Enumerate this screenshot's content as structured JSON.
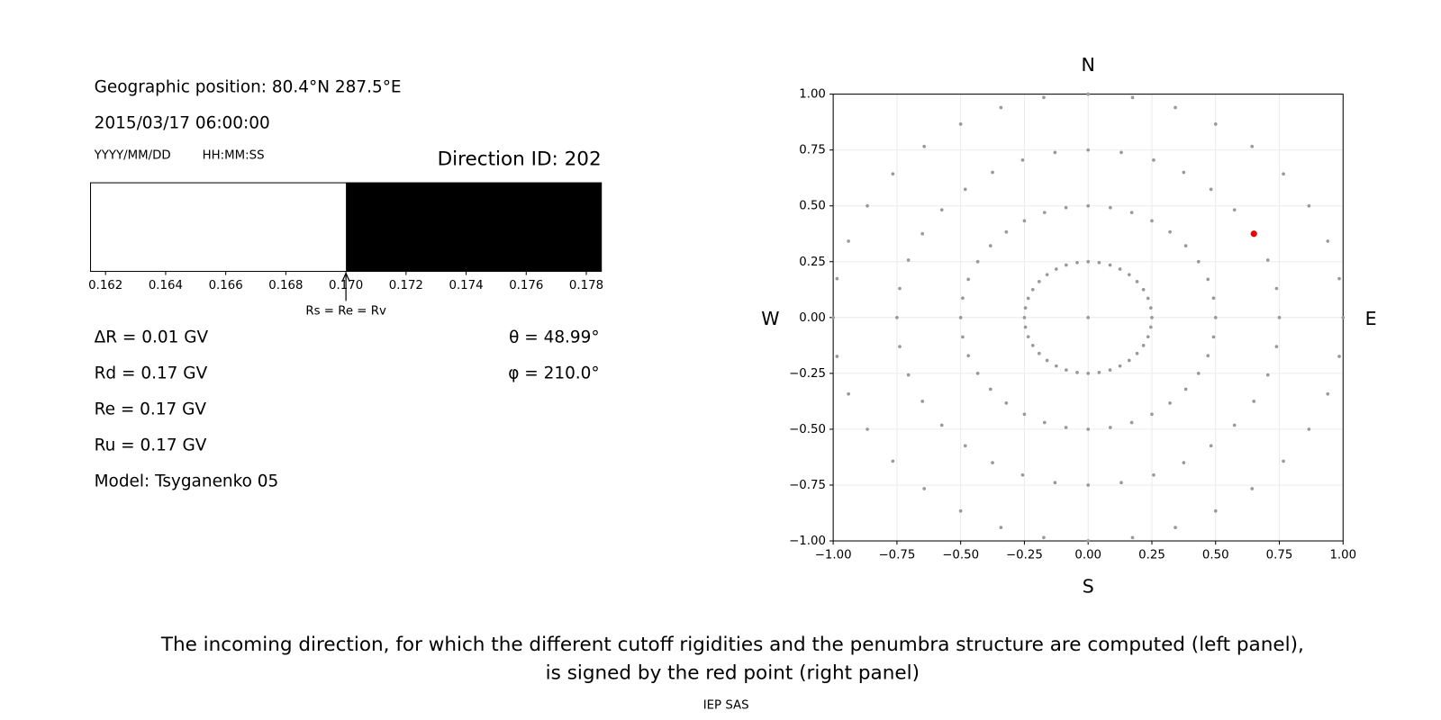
{
  "panel": {
    "position": "Geographic position: 80.4°N 287.5°E",
    "datetime": "2015/03/17 06:00:00",
    "date_format": "YYYY/MM/DD",
    "time_format": "HH:MM:SS",
    "direction_id": "Direction ID: 202",
    "rigidities": [
      "ΔR = 0.01 GV",
      "Rd = 0.17 GV",
      "Re = 0.17 GV",
      "Ru = 0.17 GV"
    ],
    "angles": [
      "θ = 48.99°",
      "φ = 210.0°"
    ],
    "model": "Model: Tsyganenko 05"
  },
  "chart_data": [
    {
      "type": "penumbra",
      "bins": [
        0.1615,
        0.17,
        0.1785
      ],
      "colors": [
        "#ffffff",
        "#000000"
      ],
      "xlim": [
        0.1615,
        0.1785
      ],
      "xticks": [
        0.162,
        0.164,
        0.166,
        0.168,
        {
          "value": 0.17,
          "label": "0.170"
        },
        0.172,
        0.174,
        0.176,
        0.178
      ],
      "annotation": {
        "text": "Rs = Re = Rv",
        "x": 0.17
      }
    },
    {
      "type": "scatter",
      "xlim": [
        -1,
        1
      ],
      "ylim": [
        -1,
        1
      ],
      "grid": true,
      "directions": {
        "top": "N",
        "bottom": "S",
        "left": "W",
        "right": "E"
      },
      "xticks": [
        {
          "value": -1,
          "label": "−1.00"
        },
        {
          "value": -0.75,
          "label": "−0.75"
        },
        {
          "value": -0.5,
          "label": "−0.50"
        },
        {
          "value": -0.25,
          "label": "−0.25"
        },
        {
          "value": 0,
          "label": "0.00"
        },
        0.25,
        {
          "value": 0.5,
          "label": "0.50"
        },
        0.75,
        {
          "value": 1,
          "label": "1.00"
        }
      ],
      "yticks": [
        {
          "value": -1,
          "label": "−1.00"
        },
        {
          "value": -0.75,
          "label": "−0.75"
        },
        {
          "value": -0.5,
          "label": "−0.50"
        },
        {
          "value": -0.25,
          "label": "−0.25"
        },
        {
          "value": 0,
          "label": "0.00"
        },
        0.25,
        {
          "value": 0.5,
          "label": "0.50"
        },
        0.75,
        {
          "value": 1,
          "label": "1.00"
        }
      ],
      "series": [
        {
          "color": "#999999",
          "x": [
            0,
            0,
            0.043,
            0.086,
            0.125,
            0.161,
            0.192,
            0.217,
            0.235,
            0.246,
            0.25,
            0.246,
            0.235,
            0.217,
            0.192,
            0.161,
            0.125,
            0.086,
            0.043,
            0,
            -0.043,
            -0.086,
            -0.125,
            -0.161,
            -0.192,
            -0.217,
            -0.235,
            -0.246,
            -0.25,
            -0.246,
            -0.235,
            -0.217,
            -0.192,
            -0.161,
            -0.125,
            -0.086,
            -0.043,
            0,
            0.087,
            0.171,
            0.25,
            0.321,
            0.383,
            0.433,
            0.47,
            0.492,
            0.5,
            0.492,
            0.47,
            0.433,
            0.383,
            0.321,
            0.25,
            0.171,
            0.087,
            0,
            -0.087,
            -0.171,
            -0.25,
            -0.321,
            -0.383,
            -0.433,
            -0.47,
            -0.492,
            -0.5,
            -0.492,
            -0.47,
            -0.433,
            -0.383,
            -0.321,
            -0.25,
            -0.171,
            -0.087,
            0,
            0.13,
            0.257,
            0.375,
            0.482,
            0.574,
            0.65,
            0.705,
            0.739,
            0.75,
            0.739,
            0.705,
            0.65,
            0.574,
            0.482,
            0.375,
            0.257,
            0.13,
            0,
            -0.13,
            -0.257,
            -0.375,
            -0.482,
            -0.574,
            -0.65,
            -0.705,
            -0.739,
            -0.75,
            -0.739,
            -0.705,
            -0.65,
            -0.574,
            -0.482,
            -0.375,
            -0.257,
            -0.13,
            0,
            0.174,
            0.342,
            0.5,
            0.643,
            0.766,
            0.866,
            0.94,
            0.985,
            1,
            0.985,
            0.94,
            0.866,
            0.766,
            0.643,
            0.5,
            0.342,
            0.174,
            0,
            -0.174,
            -0.342,
            -0.5,
            -0.643,
            -0.766,
            -0.866,
            -0.94,
            -0.985,
            -1,
            -0.985,
            -0.94,
            -0.866,
            -0.766,
            -0.643,
            -0.5,
            -0.342,
            -0.174
          ],
          "y": [
            0,
            0.25,
            0.246,
            0.235,
            0.217,
            0.192,
            0.161,
            0.125,
            0.086,
            0.043,
            0,
            -0.043,
            -0.086,
            -0.125,
            -0.161,
            -0.192,
            -0.217,
            -0.235,
            -0.246,
            -0.25,
            -0.246,
            -0.235,
            -0.217,
            -0.192,
            -0.161,
            -0.125,
            -0.086,
            -0.043,
            0,
            0.043,
            0.086,
            0.125,
            0.161,
            0.192,
            0.217,
            0.235,
            0.246,
            0.5,
            0.492,
            0.47,
            0.433,
            0.383,
            0.321,
            0.25,
            0.171,
            0.087,
            0,
            -0.087,
            -0.171,
            -0.25,
            -0.321,
            -0.383,
            -0.433,
            -0.47,
            -0.492,
            -0.5,
            -0.492,
            -0.47,
            -0.433,
            -0.383,
            -0.321,
            -0.25,
            -0.171,
            -0.087,
            0,
            0.087,
            0.171,
            0.25,
            0.321,
            0.383,
            0.433,
            0.47,
            0.492,
            0.75,
            0.739,
            0.705,
            0.65,
            0.574,
            0.482,
            0.375,
            0.257,
            0.13,
            0,
            -0.13,
            -0.257,
            -0.375,
            -0.482,
            -0.574,
            -0.65,
            -0.705,
            -0.739,
            -0.75,
            -0.739,
            -0.705,
            -0.65,
            -0.574,
            -0.482,
            -0.375,
            -0.257,
            -0.13,
            0,
            0.13,
            0.257,
            0.375,
            0.482,
            0.574,
            0.65,
            0.705,
            0.739,
            1,
            0.985,
            0.94,
            0.866,
            0.766,
            0.643,
            0.5,
            0.342,
            0.174,
            0,
            -0.174,
            -0.342,
            -0.5,
            -0.643,
            -0.766,
            -0.866,
            -0.94,
            -0.985,
            -1,
            -0.985,
            -0.94,
            -0.866,
            -0.766,
            -0.643,
            -0.5,
            -0.342,
            -0.174,
            0,
            0.174,
            0.342,
            0.5,
            0.643,
            0.766,
            0.866,
            0.94,
            0.985
          ]
        },
        {
          "color": "#ee0000",
          "x": [
            0.65
          ],
          "y": [
            0.375
          ]
        }
      ]
    }
  ],
  "caption": [
    "The incoming direction, for which the different cutoff rigidities and the penumbra structure are computed (left panel),",
    "is signed by the red point (right panel)"
  ],
  "footer": "IEP SAS"
}
